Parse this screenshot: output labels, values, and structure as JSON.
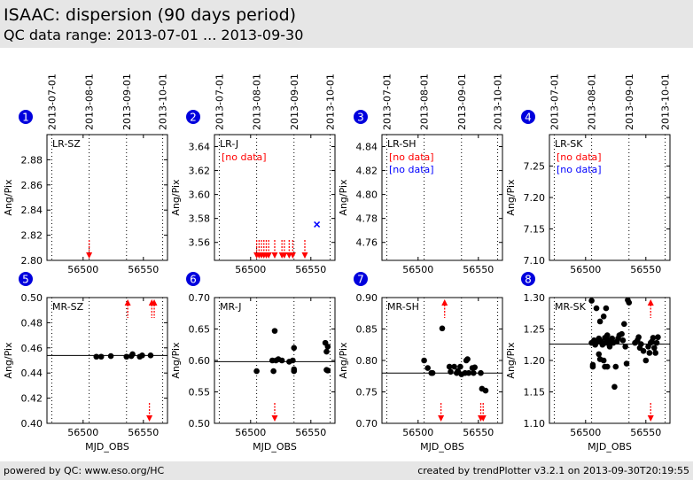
{
  "header": {
    "title": "ISAAC: dispersion (90 days period)",
    "subtitle": "QC data range: 2013-07-01 ... 2013-09-30"
  },
  "footer": {
    "left": "powered by QC: www.eso.org/HC",
    "right": "created by trendPlotter v3.2.1 on 2013-09-30T20:19:55"
  },
  "colors": {
    "badge": "#0000dd",
    "point": "#000000",
    "arrow": "#ff0000",
    "nodata_red": "#ff0000",
    "nodata_blue": "#0000ff",
    "cross": "#0000ff",
    "panel_border": "#000000",
    "header_bg": "#e6e6e6"
  },
  "date_axis": {
    "labels": [
      "2013-07-01",
      "2013-08-01",
      "2013-09-01",
      "2013-10-01"
    ],
    "mjd": [
      56474,
      56505,
      56536,
      56566
    ]
  },
  "chart_data": [
    {
      "id": 1,
      "type": "scatter",
      "label": "LR-SZ",
      "xlabel": "",
      "ylabel": "Ang/Pix",
      "xlim": [
        56470,
        56570
      ],
      "ylim": [
        2.8,
        2.9
      ],
      "yticks": [
        2.8,
        2.82,
        2.84,
        2.86,
        2.88
      ],
      "yticklabels": [
        "2.80",
        "2.82",
        "2.84",
        "2.86",
        "2.88"
      ],
      "xticks": [
        56500,
        56550
      ],
      "xticklabels": [
        "56500",
        "56550"
      ],
      "ref": null,
      "points": [],
      "crosses": [],
      "arrows_down": [
        56505
      ],
      "arrows_up": [],
      "notes": []
    },
    {
      "id": 2,
      "type": "scatter",
      "label": "LR-J",
      "xlabel": "",
      "ylabel": "Ang/Pix",
      "xlim": [
        56470,
        56570
      ],
      "ylim": [
        3.545,
        3.65
      ],
      "yticks": [
        3.56,
        3.58,
        3.6,
        3.62,
        3.64
      ],
      "yticklabels": [
        "3.56",
        "3.58",
        "3.60",
        "3.62",
        "3.64"
      ],
      "xticks": [
        56500,
        56550
      ],
      "xticklabels": [
        "56500",
        "56550"
      ],
      "ref": null,
      "points": [],
      "crosses": [
        [
          56555,
          3.575
        ]
      ],
      "arrows_down": [
        56505,
        56507,
        56509,
        56511,
        56513,
        56515,
        56520,
        56526,
        56528,
        56532,
        56535,
        56545
      ],
      "arrows_up": [],
      "notes": [
        {
          "text": "[no data]",
          "color": "red"
        }
      ]
    },
    {
      "id": 3,
      "type": "scatter",
      "label": "LR-SH",
      "xlabel": "",
      "ylabel": "Ang/Pix",
      "xlim": [
        56470,
        56570
      ],
      "ylim": [
        4.745,
        4.85
      ],
      "yticks": [
        4.76,
        4.78,
        4.8,
        4.82,
        4.84
      ],
      "yticklabels": [
        "4.76",
        "4.78",
        "4.80",
        "4.82",
        "4.84"
      ],
      "xticks": [
        56500,
        56550
      ],
      "xticklabels": [
        "56500",
        "56550"
      ],
      "ref": null,
      "points": [],
      "crosses": [],
      "arrows_down": [],
      "arrows_up": [],
      "notes": [
        {
          "text": "[no data]",
          "color": "red"
        },
        {
          "text": "[no data]",
          "color": "blue"
        }
      ]
    },
    {
      "id": 4,
      "type": "scatter",
      "label": "LR-SK",
      "xlabel": "",
      "ylabel": "Ang/Pix",
      "xlim": [
        56470,
        56570
      ],
      "ylim": [
        7.1,
        7.3
      ],
      "yticks": [
        7.1,
        7.15,
        7.2,
        7.25
      ],
      "yticklabels": [
        "7.10",
        "7.15",
        "7.20",
        "7.25"
      ],
      "xticks": [
        56500,
        56550
      ],
      "xticklabels": [
        "56500",
        "56550"
      ],
      "ref": null,
      "points": [],
      "crosses": [],
      "arrows_down": [],
      "arrows_up": [],
      "notes": [
        {
          "text": "[no data]",
          "color": "red"
        },
        {
          "text": "[no data]",
          "color": "blue"
        }
      ]
    },
    {
      "id": 5,
      "type": "scatter",
      "label": "MR-SZ",
      "xlabel": "MJD_OBS",
      "ylabel": "Ang/Pix",
      "xlim": [
        56470,
        56570
      ],
      "ylim": [
        0.4,
        0.5
      ],
      "yticks": [
        0.4,
        0.42,
        0.44,
        0.46,
        0.48,
        0.5
      ],
      "yticklabels": [
        "0.40",
        "0.42",
        "0.44",
        "0.46",
        "0.48",
        "0.50"
      ],
      "xticks": [
        56500,
        56550
      ],
      "xticklabels": [
        "56500",
        "56550"
      ],
      "ref": 0.454,
      "points": [
        [
          56511,
          0.453
        ],
        [
          56515,
          0.453
        ],
        [
          56523,
          0.4535
        ],
        [
          56536,
          0.453
        ],
        [
          56540,
          0.4535
        ],
        [
          56541,
          0.455
        ],
        [
          56547,
          0.453
        ],
        [
          56549,
          0.454
        ],
        [
          56556,
          0.454
        ]
      ],
      "crosses": [],
      "arrows_down": [
        56555
      ],
      "arrows_up": [
        56537,
        56557,
        56559
      ],
      "notes": []
    },
    {
      "id": 6,
      "type": "scatter",
      "label": "MR-J",
      "xlabel": "MJD_OBS",
      "ylabel": "Ang/Pix",
      "xlim": [
        56470,
        56570
      ],
      "ylim": [
        0.5,
        0.7
      ],
      "yticks": [
        0.5,
        0.55,
        0.6,
        0.65,
        0.7
      ],
      "yticklabels": [
        "0.50",
        "0.55",
        "0.60",
        "0.65",
        "0.70"
      ],
      "xticks": [
        56500,
        56550
      ],
      "xticklabels": [
        "56500",
        "56550"
      ],
      "ref": 0.598,
      "points": [
        [
          56505,
          0.583
        ],
        [
          56518,
          0.6
        ],
        [
          56519,
          0.583
        ],
        [
          56520,
          0.647
        ],
        [
          56521,
          0.6
        ],
        [
          56523,
          0.602
        ],
        [
          56526,
          0.6
        ],
        [
          56532,
          0.598
        ],
        [
          56535,
          0.6
        ],
        [
          56536,
          0.583
        ],
        [
          56536,
          0.62
        ],
        [
          56536,
          0.586
        ],
        [
          56562,
          0.628
        ],
        [
          56563,
          0.614
        ],
        [
          56563,
          0.585
        ],
        [
          56564,
          0.622
        ],
        [
          56564,
          0.584
        ]
      ],
      "crosses": [],
      "arrows_down": [
        56520
      ],
      "arrows_up": [],
      "notes": []
    },
    {
      "id": 7,
      "type": "scatter",
      "label": "MR-SH",
      "xlabel": "MJD_OBS",
      "ylabel": "Ang/Pix",
      "xlim": [
        56470,
        56570
      ],
      "ylim": [
        0.7,
        0.9
      ],
      "yticks": [
        0.7,
        0.75,
        0.8,
        0.85,
        0.9
      ],
      "yticklabels": [
        "0.70",
        "0.75",
        "0.80",
        "0.85",
        "0.90"
      ],
      "xticks": [
        56500,
        56550
      ],
      "xticklabels": [
        "56500",
        "56550"
      ],
      "ref": 0.78,
      "points": [
        [
          56505,
          0.8
        ],
        [
          56508,
          0.788
        ],
        [
          56511,
          0.78
        ],
        [
          56512,
          0.78
        ],
        [
          56520,
          0.851
        ],
        [
          56526,
          0.79
        ],
        [
          56527,
          0.782
        ],
        [
          56530,
          0.79
        ],
        [
          56532,
          0.78
        ],
        [
          56533,
          0.783
        ],
        [
          56535,
          0.79
        ],
        [
          56536,
          0.778
        ],
        [
          56539,
          0.78
        ],
        [
          56540,
          0.8
        ],
        [
          56541,
          0.802
        ],
        [
          56542,
          0.78
        ],
        [
          56545,
          0.788
        ],
        [
          56546,
          0.78
        ],
        [
          56547,
          0.789
        ],
        [
          56552,
          0.78
        ],
        [
          56553,
          0.755
        ],
        [
          56556,
          0.752
        ]
      ],
      "crosses": [],
      "arrows_down": [
        56519,
        56552,
        56554
      ],
      "arrows_up": [
        56522
      ],
      "notes": []
    },
    {
      "id": 8,
      "type": "scatter",
      "label": "MR-SK",
      "xlabel": "MJD_OBS",
      "ylabel": "Ang/Pix",
      "xlim": [
        56470,
        56570
      ],
      "ylim": [
        1.1,
        1.3
      ],
      "yticks": [
        1.1,
        1.15,
        1.2,
        1.25,
        1.3
      ],
      "yticklabels": [
        "1.10",
        "1.15",
        "1.20",
        "1.25",
        "1.30"
      ],
      "xticks": [
        56500,
        56550
      ],
      "xticklabels": [
        "56500",
        "56550"
      ],
      "ref": 1.226,
      "points": [
        [
          56505,
          1.295
        ],
        [
          56505,
          1.228
        ],
        [
          56506,
          1.19
        ],
        [
          56506,
          1.193
        ],
        [
          56507,
          1.232
        ],
        [
          56508,
          1.225
        ],
        [
          56509,
          1.283
        ],
        [
          56510,
          1.23
        ],
        [
          56511,
          1.235
        ],
        [
          56511,
          1.21
        ],
        [
          56512,
          1.202
        ],
        [
          56512,
          1.262
        ],
        [
          56513,
          1.23
        ],
        [
          56514,
          1.225
        ],
        [
          56515,
          1.27
        ],
        [
          56515,
          1.2
        ],
        [
          56516,
          1.236
        ],
        [
          56516,
          1.19
        ],
        [
          56517,
          1.228
        ],
        [
          56517,
          1.283
        ],
        [
          56518,
          1.24
        ],
        [
          56518,
          1.19
        ],
        [
          56519,
          1.232
        ],
        [
          56520,
          1.222
        ],
        [
          56521,
          1.23
        ],
        [
          56522,
          1.235
        ],
        [
          56523,
          1.228
        ],
        [
          56524,
          1.158
        ],
        [
          56525,
          1.19
        ],
        [
          56526,
          1.23
        ],
        [
          56527,
          1.235
        ],
        [
          56528,
          1.24
        ],
        [
          56530,
          1.242
        ],
        [
          56531,
          1.232
        ],
        [
          56532,
          1.258
        ],
        [
          56533,
          1.222
        ],
        [
          56534,
          1.195
        ],
        [
          56535,
          1.296
        ],
        [
          56536,
          1.292
        ],
        [
          56541,
          1.228
        ],
        [
          56543,
          1.232
        ],
        [
          56544,
          1.237
        ],
        [
          56545,
          1.22
        ],
        [
          56546,
          1.226
        ],
        [
          56548,
          1.215
        ],
        [
          56550,
          1.2
        ],
        [
          56552,
          1.222
        ],
        [
          56553,
          1.212
        ],
        [
          56554,
          1.228
        ],
        [
          56555,
          1.23
        ],
        [
          56556,
          1.236
        ],
        [
          56557,
          1.22
        ],
        [
          56558,
          1.212
        ],
        [
          56559,
          1.228
        ],
        [
          56560,
          1.237
        ]
      ],
      "crosses": [],
      "arrows_down": [
        56554
      ],
      "arrows_up": [
        56554
      ],
      "notes": []
    }
  ]
}
